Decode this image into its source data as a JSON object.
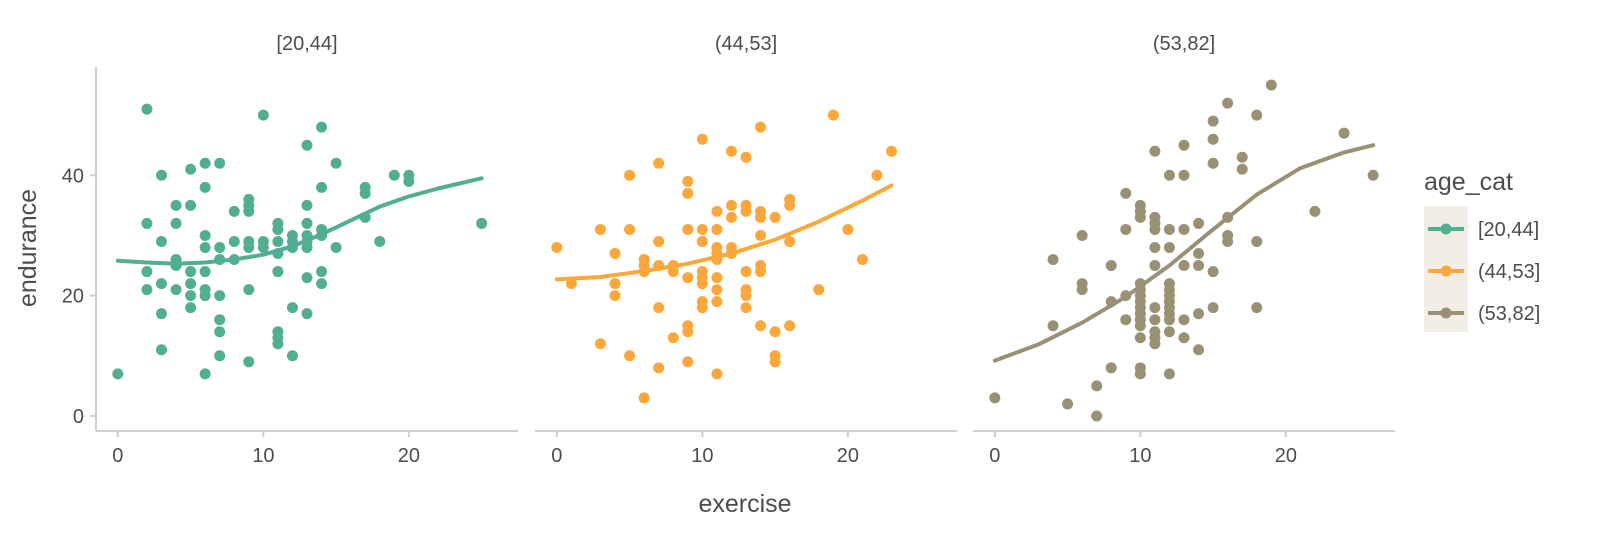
{
  "chart_data": {
    "type": "scatter",
    "xlabel": "exercise",
    "ylabel": "endurance",
    "xlim": [
      -1.5,
      27.5
    ],
    "ylim": [
      -2.5,
      58
    ],
    "xticks": [
      0,
      10,
      20
    ],
    "yticks": [
      0,
      20,
      40
    ],
    "legend": {
      "title": "age_cat",
      "placement": "right",
      "entries": [
        "[20,44]",
        "(44,53]",
        "(53,82]"
      ]
    },
    "facets": [
      {
        "label": "[20,44]",
        "color": "#52ae92",
        "points": [
          [
            0,
            7
          ],
          [
            2,
            51
          ],
          [
            2,
            32
          ],
          [
            2,
            24
          ],
          [
            2,
            21
          ],
          [
            3,
            40
          ],
          [
            3,
            29
          ],
          [
            3,
            22
          ],
          [
            3,
            17
          ],
          [
            3,
            11
          ],
          [
            4,
            35
          ],
          [
            4,
            32
          ],
          [
            4,
            26
          ],
          [
            4,
            25
          ],
          [
            4,
            21
          ],
          [
            5,
            41
          ],
          [
            5,
            35
          ],
          [
            5,
            24
          ],
          [
            5,
            22
          ],
          [
            5,
            20
          ],
          [
            5,
            18
          ],
          [
            6,
            42
          ],
          [
            6,
            38
          ],
          [
            6,
            30
          ],
          [
            6,
            28
          ],
          [
            6,
            24
          ],
          [
            6,
            21
          ],
          [
            6,
            20
          ],
          [
            6,
            7
          ],
          [
            7,
            42
          ],
          [
            7,
            28
          ],
          [
            7,
            26
          ],
          [
            7,
            20
          ],
          [
            7,
            16
          ],
          [
            7,
            14
          ],
          [
            7,
            10
          ],
          [
            8,
            34
          ],
          [
            8,
            29
          ],
          [
            8,
            26
          ],
          [
            9,
            36
          ],
          [
            9,
            35
          ],
          [
            9,
            34
          ],
          [
            9,
            29
          ],
          [
            9,
            28
          ],
          [
            9,
            21
          ],
          [
            9,
            9
          ],
          [
            10,
            50
          ],
          [
            10,
            29
          ],
          [
            10,
            28
          ],
          [
            11,
            32
          ],
          [
            11,
            31
          ],
          [
            11,
            29
          ],
          [
            11,
            27
          ],
          [
            11,
            24
          ],
          [
            11,
            14
          ],
          [
            11,
            13
          ],
          [
            11,
            12
          ],
          [
            12,
            30
          ],
          [
            12,
            29
          ],
          [
            12,
            28
          ],
          [
            12,
            18
          ],
          [
            12,
            10
          ],
          [
            13,
            45
          ],
          [
            13,
            35
          ],
          [
            13,
            32
          ],
          [
            13,
            30
          ],
          [
            13,
            29
          ],
          [
            13,
            28
          ],
          [
            13,
            23
          ],
          [
            13,
            17
          ],
          [
            14,
            48
          ],
          [
            14,
            38
          ],
          [
            14,
            31
          ],
          [
            14,
            30
          ],
          [
            14,
            24
          ],
          [
            14,
            22
          ],
          [
            15,
            42
          ],
          [
            15,
            28
          ],
          [
            17,
            38
          ],
          [
            17,
            37
          ],
          [
            17,
            33
          ],
          [
            18,
            29
          ],
          [
            19,
            40
          ],
          [
            20,
            40
          ],
          [
            20,
            39
          ],
          [
            25,
            32
          ]
        ],
        "smooth": [
          [
            0,
            25.8
          ],
          [
            2,
            25.5
          ],
          [
            4,
            25.3
          ],
          [
            6,
            25.5
          ],
          [
            8,
            26
          ],
          [
            10,
            26.8
          ],
          [
            12,
            28.2
          ],
          [
            14,
            30.2
          ],
          [
            16,
            32.5
          ],
          [
            18,
            34.8
          ],
          [
            20,
            36.5
          ],
          [
            22,
            37.8
          ],
          [
            25,
            39.5
          ]
        ]
      },
      {
        "label": "(44,53]",
        "color": "#fba73b",
        "points": [
          [
            0,
            28
          ],
          [
            1,
            22
          ],
          [
            3,
            31
          ],
          [
            3,
            12
          ],
          [
            4,
            27
          ],
          [
            4,
            22
          ],
          [
            4,
            20
          ],
          [
            5,
            40
          ],
          [
            5,
            31
          ],
          [
            5,
            10
          ],
          [
            6,
            26
          ],
          [
            6,
            25
          ],
          [
            6,
            24
          ],
          [
            6,
            3
          ],
          [
            7,
            42
          ],
          [
            7,
            29
          ],
          [
            7,
            25
          ],
          [
            7,
            18
          ],
          [
            7,
            8
          ],
          [
            8,
            25
          ],
          [
            8,
            24
          ],
          [
            8,
            13
          ],
          [
            9,
            39
          ],
          [
            9,
            37
          ],
          [
            9,
            31
          ],
          [
            9,
            23
          ],
          [
            9,
            15
          ],
          [
            9,
            14
          ],
          [
            9,
            9
          ],
          [
            10,
            46
          ],
          [
            10,
            31
          ],
          [
            10,
            29
          ],
          [
            10,
            24
          ],
          [
            10,
            23
          ],
          [
            10,
            22
          ],
          [
            10,
            19
          ],
          [
            10,
            18
          ],
          [
            11,
            34
          ],
          [
            11,
            31
          ],
          [
            11,
            28
          ],
          [
            11,
            27
          ],
          [
            11,
            26
          ],
          [
            11,
            23
          ],
          [
            11,
            21
          ],
          [
            11,
            19
          ],
          [
            11,
            7
          ],
          [
            12,
            44
          ],
          [
            12,
            35
          ],
          [
            12,
            33
          ],
          [
            12,
            28
          ],
          [
            12,
            27
          ],
          [
            13,
            43
          ],
          [
            13,
            35
          ],
          [
            13,
            34
          ],
          [
            13,
            24
          ],
          [
            13,
            21
          ],
          [
            13,
            20
          ],
          [
            13,
            18
          ],
          [
            14,
            48
          ],
          [
            14,
            34
          ],
          [
            14,
            33
          ],
          [
            14,
            30
          ],
          [
            14,
            25
          ],
          [
            14,
            24
          ],
          [
            14,
            15
          ],
          [
            15,
            33
          ],
          [
            15,
            14
          ],
          [
            15,
            10
          ],
          [
            15,
            9
          ],
          [
            16,
            36
          ],
          [
            16,
            35
          ],
          [
            16,
            29
          ],
          [
            16,
            15
          ],
          [
            18,
            21
          ],
          [
            19,
            50
          ],
          [
            20,
            31
          ],
          [
            21,
            26
          ],
          [
            22,
            40
          ],
          [
            23,
            44
          ]
        ],
        "smooth": [
          [
            0,
            22.7
          ],
          [
            3,
            23.1
          ],
          [
            6,
            24.1
          ],
          [
            9,
            25.3
          ],
          [
            12,
            27
          ],
          [
            15,
            29.3
          ],
          [
            18,
            32.3
          ],
          [
            21,
            35.8
          ],
          [
            23,
            38.3
          ]
        ]
      },
      {
        "label": "(53,82]",
        "color": "#9a9175",
        "points": [
          [
            0,
            3
          ],
          [
            4,
            26
          ],
          [
            4,
            15
          ],
          [
            5,
            2
          ],
          [
            6,
            30
          ],
          [
            6,
            22
          ],
          [
            6,
            21
          ],
          [
            7,
            5
          ],
          [
            7,
            0
          ],
          [
            8,
            25
          ],
          [
            8,
            19
          ],
          [
            8,
            8
          ],
          [
            9,
            37
          ],
          [
            9,
            31
          ],
          [
            9,
            20
          ],
          [
            9,
            16
          ],
          [
            10,
            35
          ],
          [
            10,
            34
          ],
          [
            10,
            33
          ],
          [
            10,
            22
          ],
          [
            10,
            21
          ],
          [
            10,
            20
          ],
          [
            10,
            19
          ],
          [
            10,
            18
          ],
          [
            10,
            17
          ],
          [
            10,
            16
          ],
          [
            10,
            15
          ],
          [
            10,
            13
          ],
          [
            10,
            8
          ],
          [
            10,
            7
          ],
          [
            11,
            44
          ],
          [
            11,
            33
          ],
          [
            11,
            32
          ],
          [
            11,
            31
          ],
          [
            11,
            28
          ],
          [
            11,
            25
          ],
          [
            11,
            18
          ],
          [
            11,
            16
          ],
          [
            11,
            14
          ],
          [
            11,
            13
          ],
          [
            11,
            12
          ],
          [
            12,
            40
          ],
          [
            12,
            31
          ],
          [
            12,
            28
          ],
          [
            12,
            22
          ],
          [
            12,
            21
          ],
          [
            12,
            20
          ],
          [
            12,
            19
          ],
          [
            12,
            18
          ],
          [
            12,
            17
          ],
          [
            12,
            16
          ],
          [
            12,
            14
          ],
          [
            12,
            7
          ],
          [
            13,
            45
          ],
          [
            13,
            40
          ],
          [
            13,
            31
          ],
          [
            13,
            25
          ],
          [
            13,
            16
          ],
          [
            13,
            13
          ],
          [
            14,
            32
          ],
          [
            14,
            27
          ],
          [
            14,
            25
          ],
          [
            14,
            17
          ],
          [
            14,
            11
          ],
          [
            15,
            49
          ],
          [
            15,
            46
          ],
          [
            15,
            42
          ],
          [
            15,
            24
          ],
          [
            15,
            18
          ],
          [
            16,
            52
          ],
          [
            16,
            33
          ],
          [
            16,
            30
          ],
          [
            16,
            29
          ],
          [
            17,
            43
          ],
          [
            17,
            41
          ],
          [
            18,
            50
          ],
          [
            18,
            29
          ],
          [
            18,
            18
          ],
          [
            19,
            55
          ],
          [
            22,
            34
          ],
          [
            24,
            47
          ],
          [
            26,
            40
          ]
        ],
        "smooth": [
          [
            0,
            9.2
          ],
          [
            3,
            11.9
          ],
          [
            6,
            15.5
          ],
          [
            9,
            19.8
          ],
          [
            12,
            25
          ],
          [
            15,
            31
          ],
          [
            18,
            36.8
          ],
          [
            21,
            41.2
          ],
          [
            24,
            43.8
          ],
          [
            26,
            45
          ]
        ]
      }
    ]
  }
}
